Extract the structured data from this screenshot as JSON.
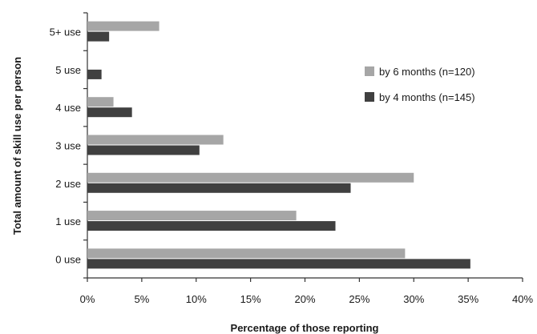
{
  "chart_data": {
    "type": "bar",
    "orientation": "horizontal",
    "title": "",
    "xlabel": "Percentage of those reporting",
    "ylabel": "Total amount of skill use per person",
    "categories": [
      "5+ use",
      "5 use",
      "4 use",
      "3 use",
      "2 use",
      "1 use",
      "0 use"
    ],
    "x_ticks": [
      "0%",
      "5%",
      "10%",
      "15%",
      "20%",
      "25%",
      "30%",
      "35%",
      "40%"
    ],
    "xlim": [
      0,
      40
    ],
    "series": [
      {
        "name": "by 6 months (n=120)",
        "color": "#a6a6a6",
        "values": [
          6.6,
          0,
          2.4,
          12.5,
          30.0,
          19.2,
          29.2
        ]
      },
      {
        "name": "by 4 months (n=145)",
        "color": "#404040",
        "values": [
          2.0,
          1.3,
          4.1,
          10.3,
          24.2,
          22.8,
          35.2
        ]
      }
    ],
    "legend_position": "right",
    "grid": false
  }
}
